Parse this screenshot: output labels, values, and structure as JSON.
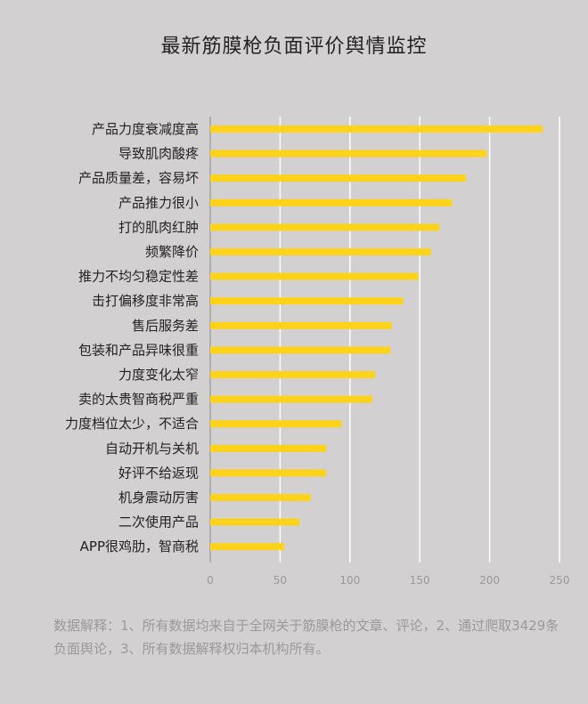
{
  "page": {
    "title": "最新筋膜枪负面评价舆情监控",
    "note": "数据解释：1、所有数据均来自于全网关于筋膜枪的文章、评论，2、通过爬取3429条负面舆论，3、所有数据解释权归本机构所有。"
  },
  "colors": {
    "bar": "#fcd318",
    "grid": "#ffffff",
    "background": "#d2d0d1",
    "label": "#222222",
    "tick": "#9a9899"
  },
  "chart_data": {
    "type": "bar",
    "orientation": "horizontal",
    "categories": [
      "产品力度衰减度高",
      "导致肌肉酸疼",
      "产品质量差，容易坏",
      "产品推力很小",
      "打的肌肉红肿",
      "频繁降价",
      "推力不均匀稳定性差",
      "击打偏移度非常高",
      "售后服务差",
      "包装和产品异味很重",
      "力度变化太窄",
      "卖的太贵智商税严重",
      "力度档位太少，不适合",
      "自动开机与关机",
      "好评不给返现",
      "机身震动厉害",
      "二次使用产品",
      "APP很鸡肋，智商税"
    ],
    "values": [
      238,
      198,
      183,
      173,
      164,
      158,
      149,
      138,
      130,
      129,
      118,
      116,
      94,
      83,
      83,
      72,
      64,
      53
    ],
    "title": "最新筋膜枪负面评价舆情监控",
    "xlabel": "",
    "ylabel": "",
    "xlim": [
      0,
      250
    ],
    "xticks": [
      "0",
      "50",
      "100",
      "150",
      "200",
      "250"
    ],
    "grid": true,
    "legend": "none"
  }
}
